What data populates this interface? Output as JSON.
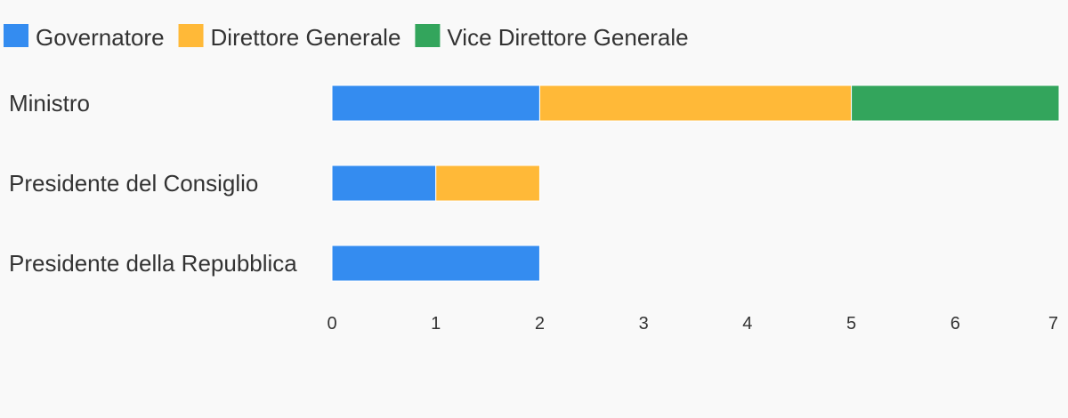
{
  "chart_data": {
    "type": "bar",
    "orientation": "horizontal",
    "stacked": true,
    "categories": [
      "Ministro",
      "Presidente del Consiglio",
      "Presidente della Repubblica"
    ],
    "series": [
      {
        "name": "Governatore",
        "color": "#348cf0",
        "values": [
          2,
          1,
          2
        ]
      },
      {
        "name": "Direttore Generale",
        "color": "#ffb938",
        "values": [
          3,
          1,
          0
        ]
      },
      {
        "name": "Vice Direttore Generale",
        "color": "#33a55c",
        "values": [
          2,
          0,
          0
        ]
      }
    ],
    "xlim": [
      0,
      7
    ],
    "x_ticks": [
      "0",
      "1",
      "2",
      "3",
      "4",
      "5",
      "6",
      "7"
    ],
    "legend_position": "top-left",
    "grid": false
  }
}
